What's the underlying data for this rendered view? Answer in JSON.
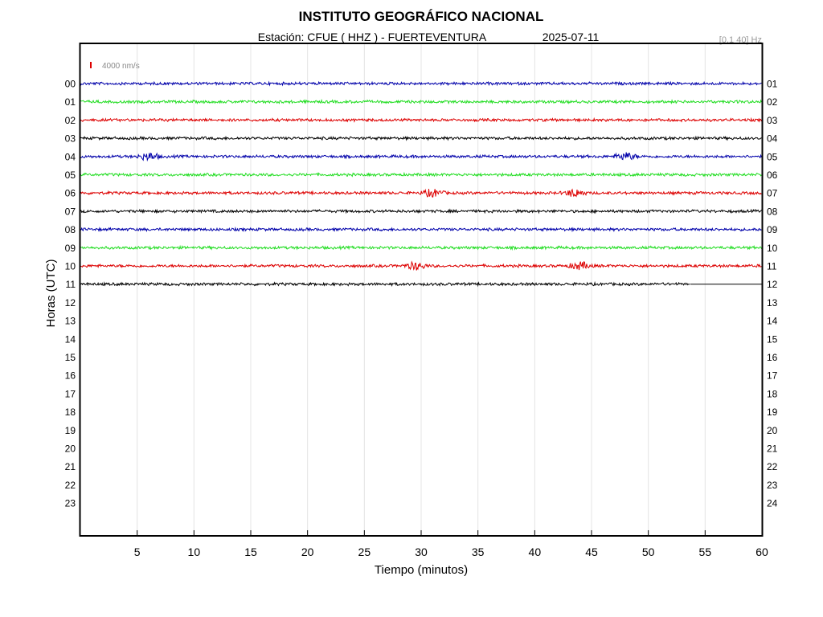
{
  "header": {
    "title": "INSTITUTO GEOGRÁFICO NACIONAL",
    "subtitle": "Estación:  CFUE ( HHZ ) - FUERTEVENTURA",
    "date": "2025-07-11",
    "filter": "[0.1 40] Hz"
  },
  "scale": {
    "label": "4000 nm/s",
    "color": "#dd0000"
  },
  "chart_data": {
    "type": "line",
    "title": "INSTITUTO GEOGRÁFICO NACIONAL",
    "xlabel": "Tiempo (minutos)",
    "ylabel": "Horas (UTC)",
    "xlim": [
      0,
      60
    ],
    "x_ticks": [
      "5",
      "10",
      "15",
      "20",
      "25",
      "30",
      "35",
      "40",
      "45",
      "50",
      "55",
      "60"
    ],
    "left_hour_labels": [
      "00",
      "01",
      "02",
      "03",
      "04",
      "05",
      "06",
      "07",
      "08",
      "09",
      "10",
      "11",
      "12",
      "13",
      "14",
      "15",
      "16",
      "17",
      "18",
      "19",
      "20",
      "21",
      "22",
      "23"
    ],
    "right_hour_labels": [
      "01",
      "02",
      "03",
      "04",
      "05",
      "06",
      "07",
      "08",
      "09",
      "10",
      "11",
      "12",
      "13",
      "14",
      "15",
      "16",
      "17",
      "18",
      "19",
      "20",
      "21",
      "22",
      "23",
      "24"
    ],
    "grid": true,
    "series_colors": [
      "#0000aa",
      "#22dd22",
      "#dd0000",
      "#000000"
    ],
    "traces": [
      {
        "hour": "00",
        "color": "#0000aa",
        "end_minute": 60,
        "bursts": []
      },
      {
        "hour": "01",
        "color": "#22dd22",
        "end_minute": 60,
        "bursts": []
      },
      {
        "hour": "02",
        "color": "#dd0000",
        "end_minute": 60,
        "bursts": []
      },
      {
        "hour": "03",
        "color": "#000000",
        "end_minute": 60,
        "bursts": []
      },
      {
        "hour": "04",
        "color": "#0000aa",
        "end_minute": 60,
        "bursts": [
          6,
          48
        ]
      },
      {
        "hour": "05",
        "color": "#22dd22",
        "end_minute": 60,
        "bursts": []
      },
      {
        "hour": "06",
        "color": "#dd0000",
        "end_minute": 60,
        "bursts": [
          31,
          43.5
        ]
      },
      {
        "hour": "07",
        "color": "#000000",
        "end_minute": 60,
        "bursts": []
      },
      {
        "hour": "08",
        "color": "#0000aa",
        "end_minute": 60,
        "bursts": []
      },
      {
        "hour": "09",
        "color": "#22dd22",
        "end_minute": 60,
        "bursts": []
      },
      {
        "hour": "10",
        "color": "#dd0000",
        "end_minute": 60,
        "bursts": [
          29.5,
          44
        ]
      },
      {
        "hour": "11",
        "color": "#000000",
        "end_minute": 53.7,
        "bursts": []
      }
    ]
  }
}
